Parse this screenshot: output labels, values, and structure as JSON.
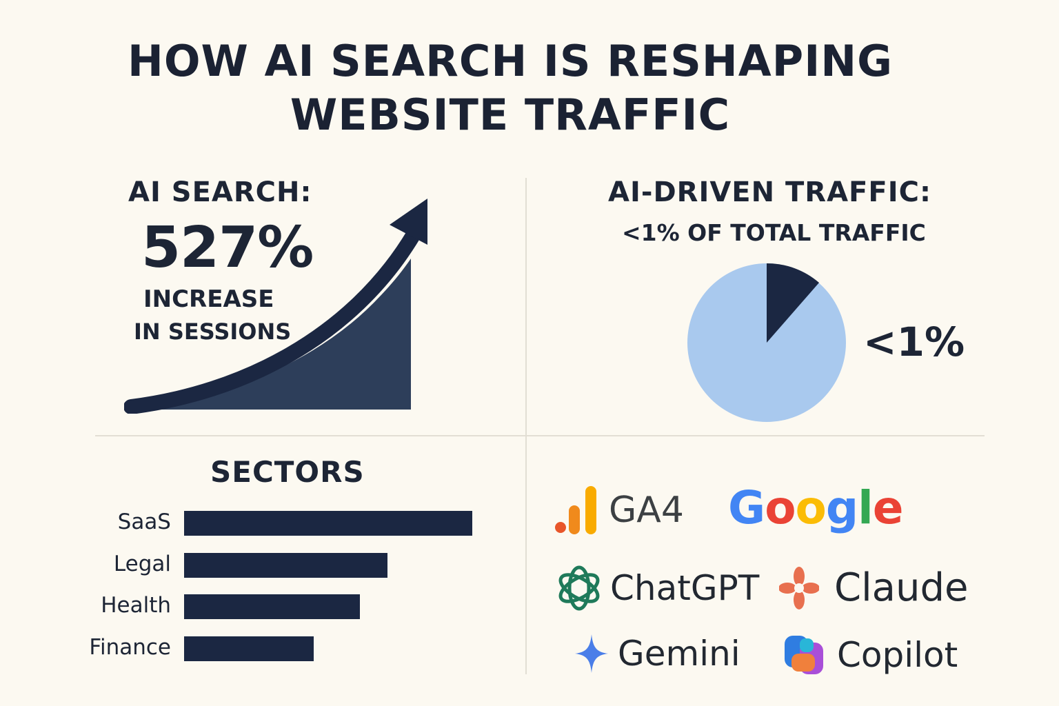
{
  "title": {
    "line1": "HOW AI SEARCH IS RESHAPING",
    "line2": "WEBSITE TRAFFIC"
  },
  "ai_search": {
    "label": "AI SEARCH:",
    "value": "527%",
    "line1": "INCREASE",
    "line2": "IN SESSIONS"
  },
  "ai_traffic": {
    "label": "AI-DRIVEN TRAFFIC:",
    "subtitle": "<1% OF TOTAL TRAFFIC",
    "pie_label": "<1%",
    "pie_colors": {
      "base": "#a9c9ee",
      "highlight": "#1b2742"
    }
  },
  "chart_data": {
    "type": "bar",
    "title": "SECTORS",
    "orientation": "horizontal",
    "categories": [
      "SaaS",
      "Legal",
      "Health",
      "Finance"
    ],
    "values": [
      100,
      70.5,
      61,
      45
    ],
    "xlabel": "",
    "ylabel": "",
    "color": "#1b2742"
  },
  "logos": {
    "ga4": "GA4",
    "google": [
      "G",
      "o",
      "o",
      "g",
      "l",
      "e"
    ],
    "chatgpt": "ChatGPT",
    "claude": "Claude",
    "gemini": "Gemini",
    "copilot": "Copilot"
  },
  "colors": {
    "background": "#fcf9f1",
    "navy": "#1b2742",
    "pie_light": "#a9c9ee",
    "google_blue": "#4285f4",
    "google_red": "#ea4335",
    "google_yellow": "#fbbc05",
    "google_green": "#34a853",
    "ga4_orange": "#f9ab00",
    "ga4_dark_orange": "#e37400",
    "chatgpt_green": "#1f7a5a",
    "claude_orange": "#e8704f",
    "gemini_blue": "#4a7ee8"
  }
}
